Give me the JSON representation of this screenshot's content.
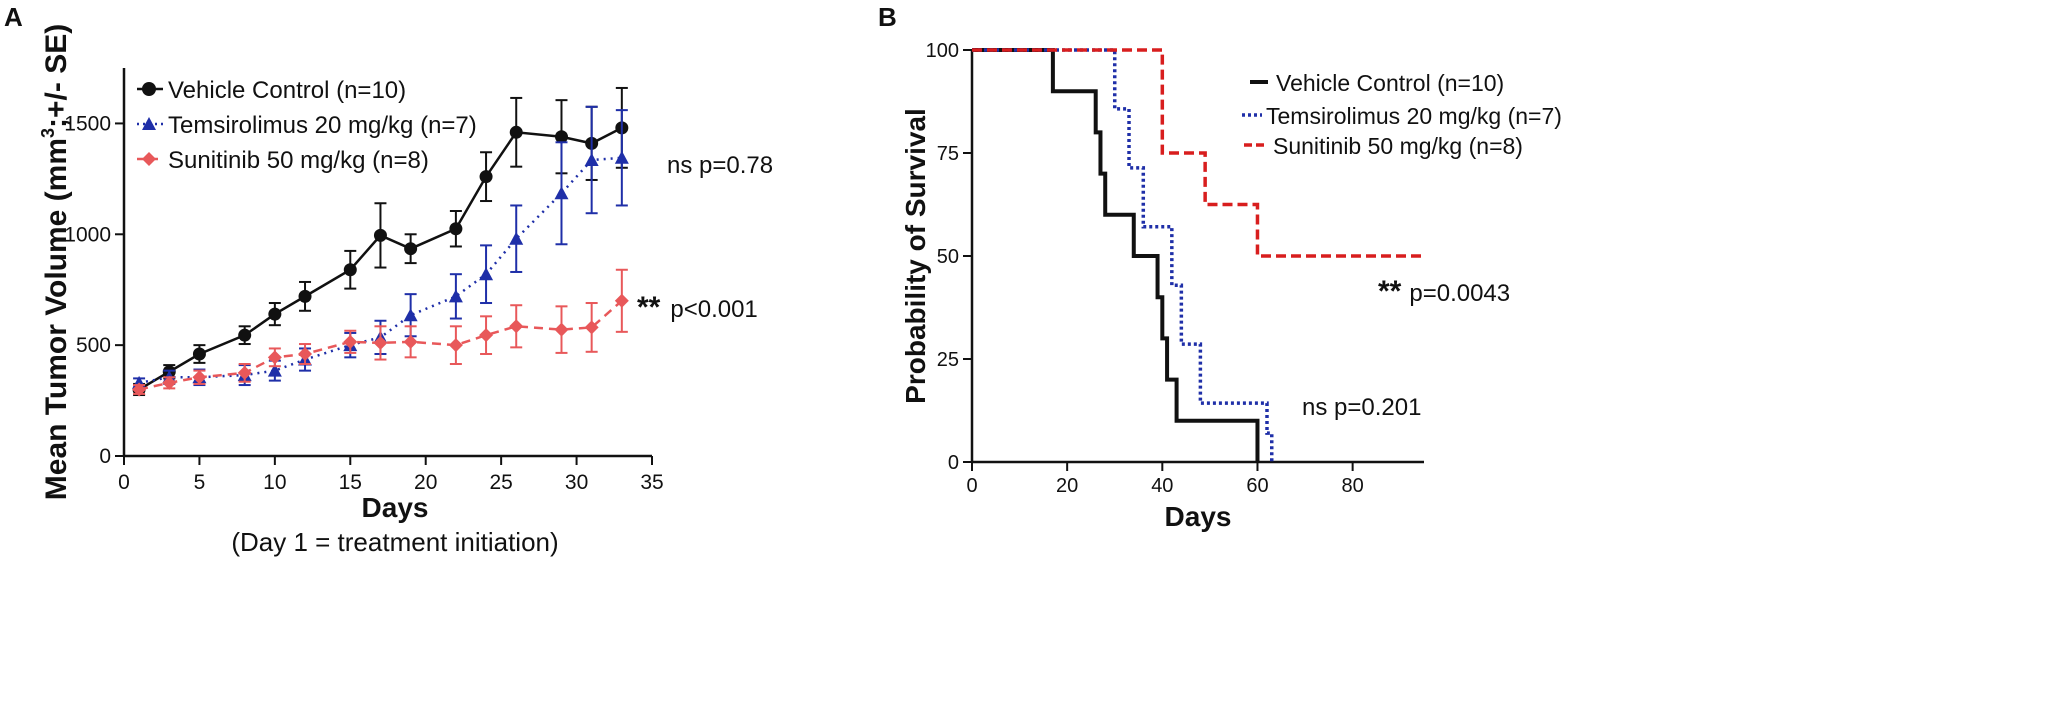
{
  "chart_data": [
    {
      "panel_label": "A",
      "type": "line",
      "xlabel": "Days",
      "xlabel_note": "(Day 1 = treatment initiation)",
      "ylabel_parts": [
        "Mean Tumor Volume (mm",
        "3",
        ";+/- SE)"
      ],
      "xlim": [
        0,
        35
      ],
      "ylim": [
        0,
        1750
      ],
      "xticks": [
        0,
        5,
        10,
        15,
        20,
        25,
        30,
        35
      ],
      "yticks": [
        0,
        500,
        1000,
        1500
      ],
      "colors": {
        "vehicle": "#111111",
        "temsirolimus": "#1f2fa8",
        "sunitinib": "#e8585a"
      },
      "series": [
        {
          "name": "Vehicle Control (n=10)",
          "key": "vehicle",
          "x": [
            1,
            3,
            5,
            8,
            10,
            12,
            15,
            17,
            19,
            22,
            24,
            26,
            29,
            31,
            33
          ],
          "values": [
            300,
            380,
            460,
            545,
            640,
            720,
            840,
            995,
            935,
            1025,
            1260,
            1460,
            1440,
            1410,
            1480
          ],
          "se": [
            25,
            30,
            40,
            40,
            50,
            65,
            85,
            145,
            65,
            80,
            110,
            155,
            165,
            165,
            180
          ]
        },
        {
          "name": "Temsirolimus 20 mg/kg (n=7)",
          "key": "temsirolimus",
          "x": [
            1,
            3,
            5,
            8,
            10,
            12,
            15,
            17,
            19,
            22,
            24,
            26,
            29,
            31,
            33
          ],
          "values": [
            330,
            355,
            355,
            365,
            385,
            435,
            500,
            535,
            635,
            720,
            820,
            980,
            1185,
            1335,
            1345
          ],
          "se": [
            20,
            30,
            35,
            45,
            45,
            50,
            55,
            75,
            95,
            100,
            130,
            150,
            230,
            240,
            215
          ]
        },
        {
          "name": "Sunitinib 50 mg/kg (n=8)",
          "key": "sunitinib",
          "x": [
            1,
            3,
            5,
            8,
            10,
            12,
            15,
            17,
            19,
            22,
            24,
            26,
            29,
            31,
            33
          ],
          "values": [
            300,
            330,
            355,
            375,
            445,
            460,
            515,
            510,
            515,
            500,
            545,
            585,
            570,
            580,
            700
          ],
          "se": [
            20,
            25,
            30,
            40,
            40,
            45,
            50,
            75,
            70,
            85,
            85,
            95,
            105,
            110,
            140
          ]
        }
      ],
      "annotations": [
        {
          "stars": "",
          "text": "ns p=0.78"
        },
        {
          "stars": "**",
          "text": "p<0.001"
        }
      ]
    },
    {
      "panel_label": "B",
      "type": "line",
      "xlabel": "Days",
      "ylabel": "Probability of Survival",
      "xlim": [
        0,
        95
      ],
      "ylim": [
        0,
        100
      ],
      "xticks": [
        0,
        20,
        40,
        60,
        80
      ],
      "yticks": [
        0,
        25,
        50,
        75,
        100
      ],
      "series": [
        {
          "name": "Vehicle Control (n=10)",
          "key": "vehicle",
          "x": [
            0,
            17,
            17,
            26,
            26,
            27,
            27,
            28,
            28,
            34,
            34,
            39,
            39,
            40,
            40,
            41,
            41,
            43,
            43,
            60,
            60
          ],
          "values": [
            100,
            100,
            90,
            90,
            80,
            80,
            70,
            70,
            60,
            60,
            50,
            50,
            40,
            40,
            30,
            30,
            20,
            20,
            10,
            10,
            0
          ]
        },
        {
          "name": "Temsirolimus 20 mg/kg (n=7)",
          "key": "temsirolimus",
          "x": [
            0,
            30,
            30,
            33,
            33,
            36,
            36,
            42,
            42,
            44,
            44,
            48,
            48,
            62,
            62,
            63,
            63
          ],
          "values": [
            100,
            100,
            85.7,
            85.7,
            71.4,
            71.4,
            57.1,
            57.1,
            42.9,
            42.9,
            28.6,
            28.6,
            14.3,
            14.3,
            7,
            7,
            0
          ]
        },
        {
          "name": "Sunitinib 50 mg/kg (n=8)",
          "key": "sunitinib",
          "x": [
            0,
            40,
            40,
            49,
            49,
            60,
            60,
            95
          ],
          "values": [
            100,
            100,
            75,
            75,
            62.5,
            62.5,
            50,
            50
          ]
        }
      ],
      "annotations": [
        {
          "stars": "**",
          "text": "p=0.0043"
        },
        {
          "stars": "",
          "text": "ns p=0.201"
        }
      ]
    }
  ]
}
